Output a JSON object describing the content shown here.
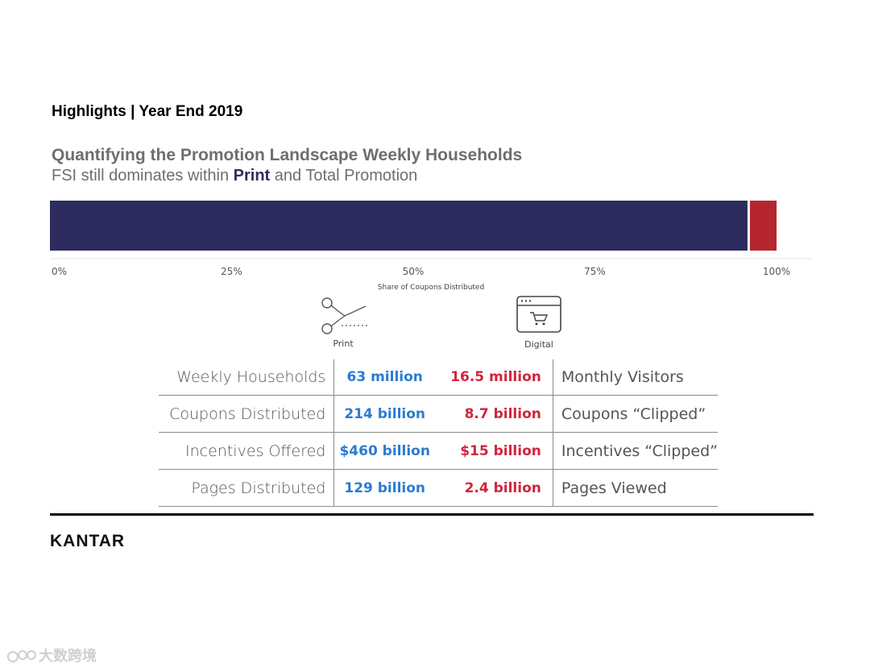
{
  "header": {
    "page_title": "Highlights | Year End 2019"
  },
  "chart": {
    "title": "Quantifying the Promotion Landscape Weekly Households",
    "subtitle_before": "FSI still dominates within ",
    "subtitle_highlight": "Print",
    "subtitle_after": " and Total Promotion"
  },
  "chart_data": {
    "type": "bar",
    "orientation": "horizontal-stacked",
    "series": [
      {
        "name": "",
        "values": [
          96
        ],
        "color": "#2e2b5f"
      },
      {
        "name": "",
        "values": [
          4
        ],
        "color": "#b5262e"
      }
    ],
    "xlabel": "Share of Coupons Distributed",
    "xlim": [
      0,
      100
    ],
    "xticks": [
      "0%",
      "25%",
      "50%",
      "75%",
      "100%"
    ],
    "grid": false
  },
  "icons": {
    "print": {
      "icon": "scissors-icon",
      "label": "Print"
    },
    "digital": {
      "icon": "shopping-cart-window-icon",
      "label": "Digital"
    }
  },
  "table": {
    "rows": [
      {
        "left_label": "Weekly Households",
        "print": "63 million",
        "digital": "16.5 million",
        "right_label": "Monthly Visitors"
      },
      {
        "left_label": "Coupons Distributed",
        "print": "214 billion",
        "digital": "8.7 billion",
        "right_label": "Coupons “Clipped”"
      },
      {
        "left_label": "Incentives Offered",
        "print": "$460 billion",
        "digital": "$15 billion",
        "right_label": "Incentives “Clipped”"
      },
      {
        "left_label": "Pages Distributed",
        "print": "129 billion",
        "digital": "2.4 billion",
        "right_label": "Pages Viewed"
      }
    ],
    "colors": {
      "print": "#2b7bd1",
      "digital": "#d0253b"
    }
  },
  "footer": {
    "logo": "KANTAR"
  },
  "watermark": {
    "text": "大数跨境"
  }
}
